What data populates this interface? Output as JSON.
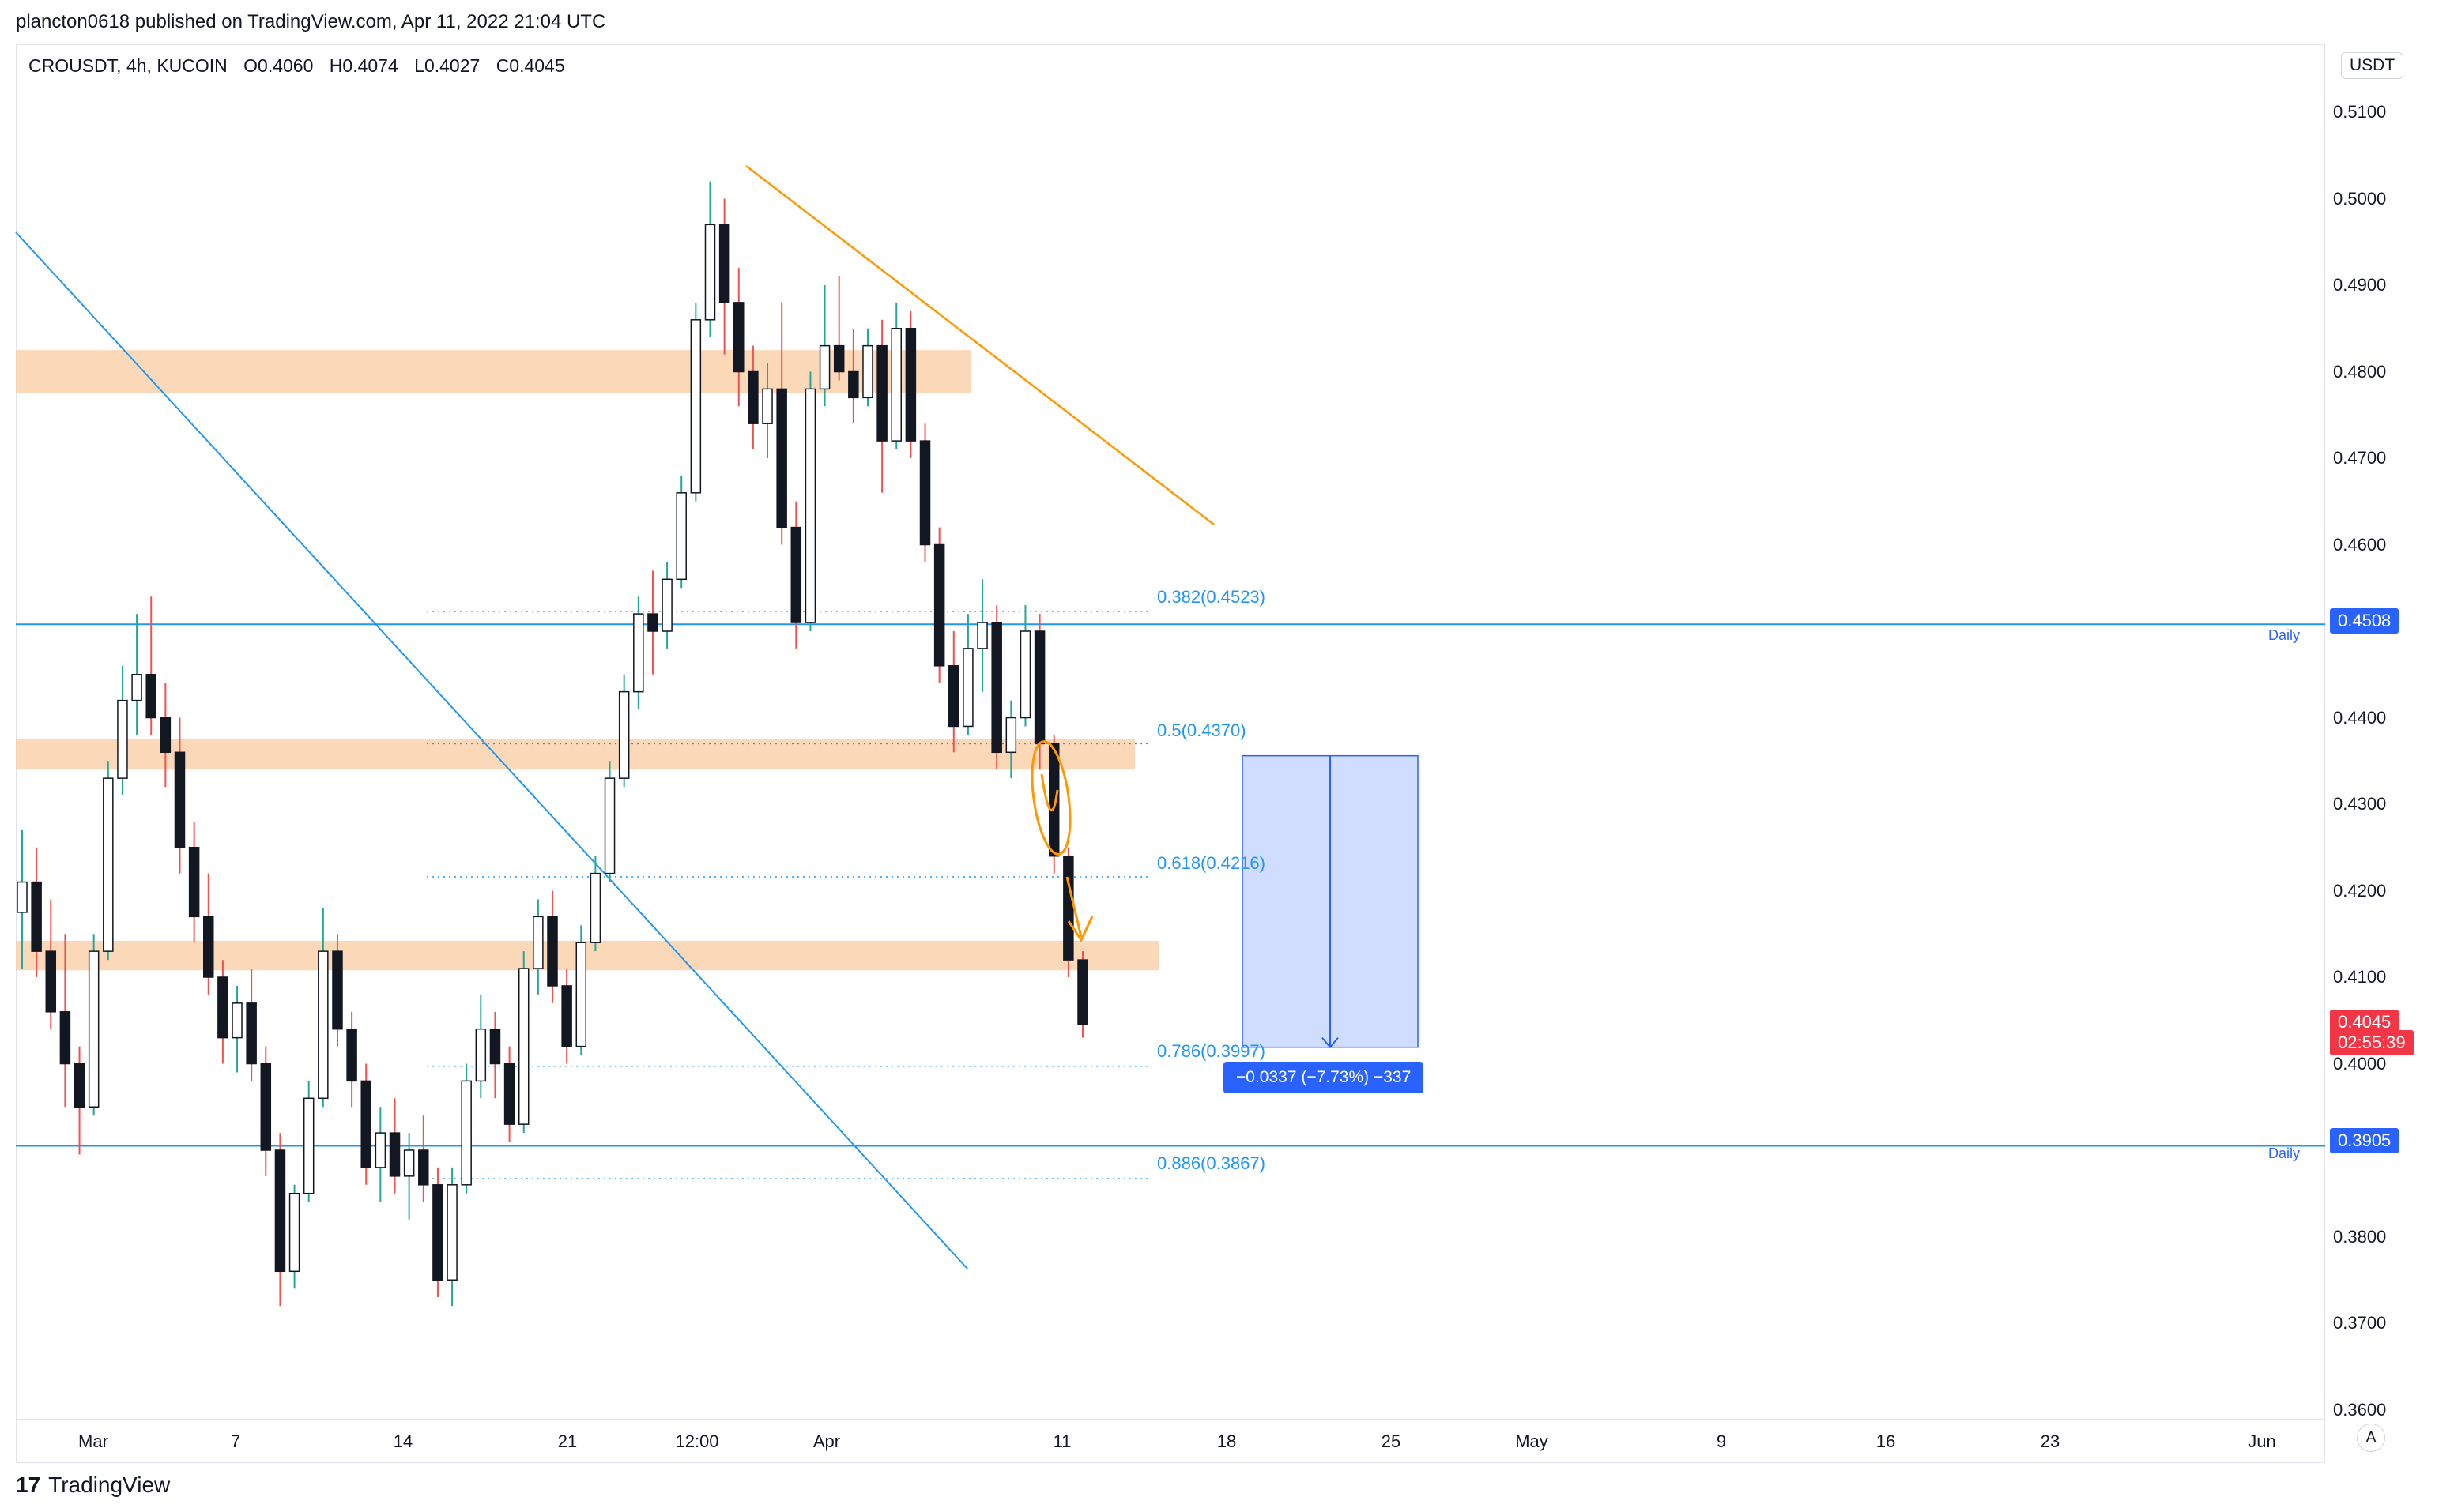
{
  "header": {
    "published_text": "plancton0618 published on TradingView.com, Apr 11, 2022 21:04 UTC"
  },
  "symbol": {
    "pair": "CROUSDT, 4h, KUCOIN",
    "open": "O0.4060",
    "high": "H0.4074",
    "low": "L0.4027",
    "close": "C0.4045"
  },
  "unit_badge": "USDT",
  "price_axis": {
    "ticks": [
      "0.5100",
      "0.5000",
      "0.4900",
      "0.4800",
      "0.4700",
      "0.4600",
      "0.4400",
      "0.4300",
      "0.4200",
      "0.4100",
      "0.4000",
      "0.3800",
      "0.3700",
      "0.3600"
    ]
  },
  "time_axis": {
    "ticks": [
      "Mar",
      "7",
      "14",
      "21",
      "12:00",
      "Apr",
      "11",
      "18",
      "25",
      "May",
      "9",
      "16",
      "23",
      "Jun"
    ]
  },
  "price_tags": {
    "daily_high": "0.4508",
    "current_price": "0.4045",
    "countdown": "02:55:39",
    "daily_low": "0.3905"
  },
  "level_labels": {
    "daily_1": "Daily",
    "daily_2": "Daily"
  },
  "fib_levels": [
    {
      "label": "0.382(0.4523)",
      "price": 0.4523
    },
    {
      "label": "0.5(0.4370)",
      "price": 0.437
    },
    {
      "label": "0.618(0.4216)",
      "price": 0.4216
    },
    {
      "label": "0.786(0.3997)",
      "price": 0.3997
    },
    {
      "label": "0.886(0.3867)",
      "price": 0.3867
    }
  ],
  "measure": {
    "label": "−0.0337 (−7.73%) −337",
    "from": 0.4356,
    "to": 0.4019
  },
  "auto_button": "A",
  "footer": {
    "brand": "TradingView",
    "mark": "17"
  },
  "colors": {
    "up": "#26a69a",
    "down": "#ef5350",
    "zone": "#f9cba0",
    "blue": "#2196f3",
    "trend": "#ff9800",
    "current_tag": "#f23645",
    "level_tag": "#2962ff"
  },
  "chart_data": {
    "type": "candlestick",
    "title": "CROUSDT, 4h, KUCOIN",
    "ylim": [
      0.3585,
      0.514
    ],
    "xlabel": "",
    "ylabel": "",
    "candles": [
      [
        0.4175,
        0.427,
        0.411,
        0.421
      ],
      [
        0.421,
        0.425,
        0.41,
        0.413
      ],
      [
        0.413,
        0.419,
        0.404,
        0.406
      ],
      [
        0.406,
        0.415,
        0.395,
        0.4
      ],
      [
        0.4,
        0.402,
        0.3895,
        0.395
      ],
      [
        0.395,
        0.415,
        0.394,
        0.413
      ],
      [
        0.413,
        0.435,
        0.412,
        0.433
      ],
      [
        0.433,
        0.446,
        0.431,
        0.442
      ],
      [
        0.442,
        0.452,
        0.438,
        0.445
      ],
      [
        0.445,
        0.454,
        0.438,
        0.44
      ],
      [
        0.44,
        0.444,
        0.432,
        0.436
      ],
      [
        0.436,
        0.44,
        0.422,
        0.425
      ],
      [
        0.425,
        0.428,
        0.414,
        0.417
      ],
      [
        0.417,
        0.422,
        0.408,
        0.41
      ],
      [
        0.41,
        0.412,
        0.4,
        0.403
      ],
      [
        0.403,
        0.409,
        0.399,
        0.407
      ],
      [
        0.407,
        0.411,
        0.398,
        0.4
      ],
      [
        0.4,
        0.402,
        0.387,
        0.39
      ],
      [
        0.39,
        0.392,
        0.372,
        0.376
      ],
      [
        0.376,
        0.386,
        0.374,
        0.385
      ],
      [
        0.385,
        0.398,
        0.384,
        0.396
      ],
      [
        0.396,
        0.418,
        0.395,
        0.413
      ],
      [
        0.413,
        0.415,
        0.402,
        0.404
      ],
      [
        0.404,
        0.406,
        0.395,
        0.398
      ],
      [
        0.398,
        0.4,
        0.386,
        0.388
      ],
      [
        0.388,
        0.395,
        0.384,
        0.392
      ],
      [
        0.392,
        0.396,
        0.385,
        0.387
      ],
      [
        0.387,
        0.392,
        0.382,
        0.39
      ],
      [
        0.39,
        0.394,
        0.384,
        0.386
      ],
      [
        0.386,
        0.388,
        0.373,
        0.375
      ],
      [
        0.375,
        0.388,
        0.372,
        0.386
      ],
      [
        0.386,
        0.4,
        0.385,
        0.398
      ],
      [
        0.398,
        0.408,
        0.396,
        0.404
      ],
      [
        0.404,
        0.406,
        0.396,
        0.4
      ],
      [
        0.4,
        0.402,
        0.391,
        0.393
      ],
      [
        0.393,
        0.413,
        0.392,
        0.411
      ],
      [
        0.411,
        0.419,
        0.408,
        0.417
      ],
      [
        0.417,
        0.42,
        0.407,
        0.409
      ],
      [
        0.409,
        0.411,
        0.4,
        0.402
      ],
      [
        0.402,
        0.416,
        0.401,
        0.414
      ],
      [
        0.414,
        0.424,
        0.413,
        0.422
      ],
      [
        0.422,
        0.435,
        0.421,
        0.433
      ],
      [
        0.433,
        0.445,
        0.432,
        0.443
      ],
      [
        0.443,
        0.454,
        0.441,
        0.452
      ],
      [
        0.452,
        0.457,
        0.445,
        0.45
      ],
      [
        0.45,
        0.458,
        0.448,
        0.456
      ],
      [
        0.456,
        0.468,
        0.455,
        0.466
      ],
      [
        0.466,
        0.488,
        0.465,
        0.486
      ],
      [
        0.486,
        0.502,
        0.484,
        0.497
      ],
      [
        0.497,
        0.5,
        0.482,
        0.488
      ],
      [
        0.488,
        0.492,
        0.476,
        0.48
      ],
      [
        0.48,
        0.483,
        0.471,
        0.474
      ],
      [
        0.474,
        0.481,
        0.47,
        0.478
      ],
      [
        0.478,
        0.488,
        0.46,
        0.462
      ],
      [
        0.462,
        0.465,
        0.448,
        0.451
      ],
      [
        0.451,
        0.48,
        0.45,
        0.478
      ],
      [
        0.478,
        0.49,
        0.476,
        0.483
      ],
      [
        0.483,
        0.491,
        0.479,
        0.48
      ],
      [
        0.48,
        0.485,
        0.474,
        0.477
      ],
      [
        0.477,
        0.485,
        0.476,
        0.483
      ],
      [
        0.483,
        0.486,
        0.466,
        0.472
      ],
      [
        0.472,
        0.488,
        0.471,
        0.485
      ],
      [
        0.485,
        0.487,
        0.47,
        0.472
      ],
      [
        0.472,
        0.474,
        0.458,
        0.46
      ],
      [
        0.46,
        0.462,
        0.444,
        0.446
      ],
      [
        0.446,
        0.45,
        0.436,
        0.439
      ],
      [
        0.439,
        0.452,
        0.438,
        0.448
      ],
      [
        0.448,
        0.456,
        0.443,
        0.451
      ],
      [
        0.451,
        0.453,
        0.434,
        0.436
      ],
      [
        0.436,
        0.442,
        0.433,
        0.44
      ],
      [
        0.44,
        0.453,
        0.439,
        0.45
      ],
      [
        0.45,
        0.452,
        0.434,
        0.437
      ],
      [
        0.437,
        0.438,
        0.422,
        0.424
      ],
      [
        0.424,
        0.425,
        0.41,
        0.412
      ],
      [
        0.412,
        0.413,
        0.403,
        0.4045
      ]
    ]
  }
}
